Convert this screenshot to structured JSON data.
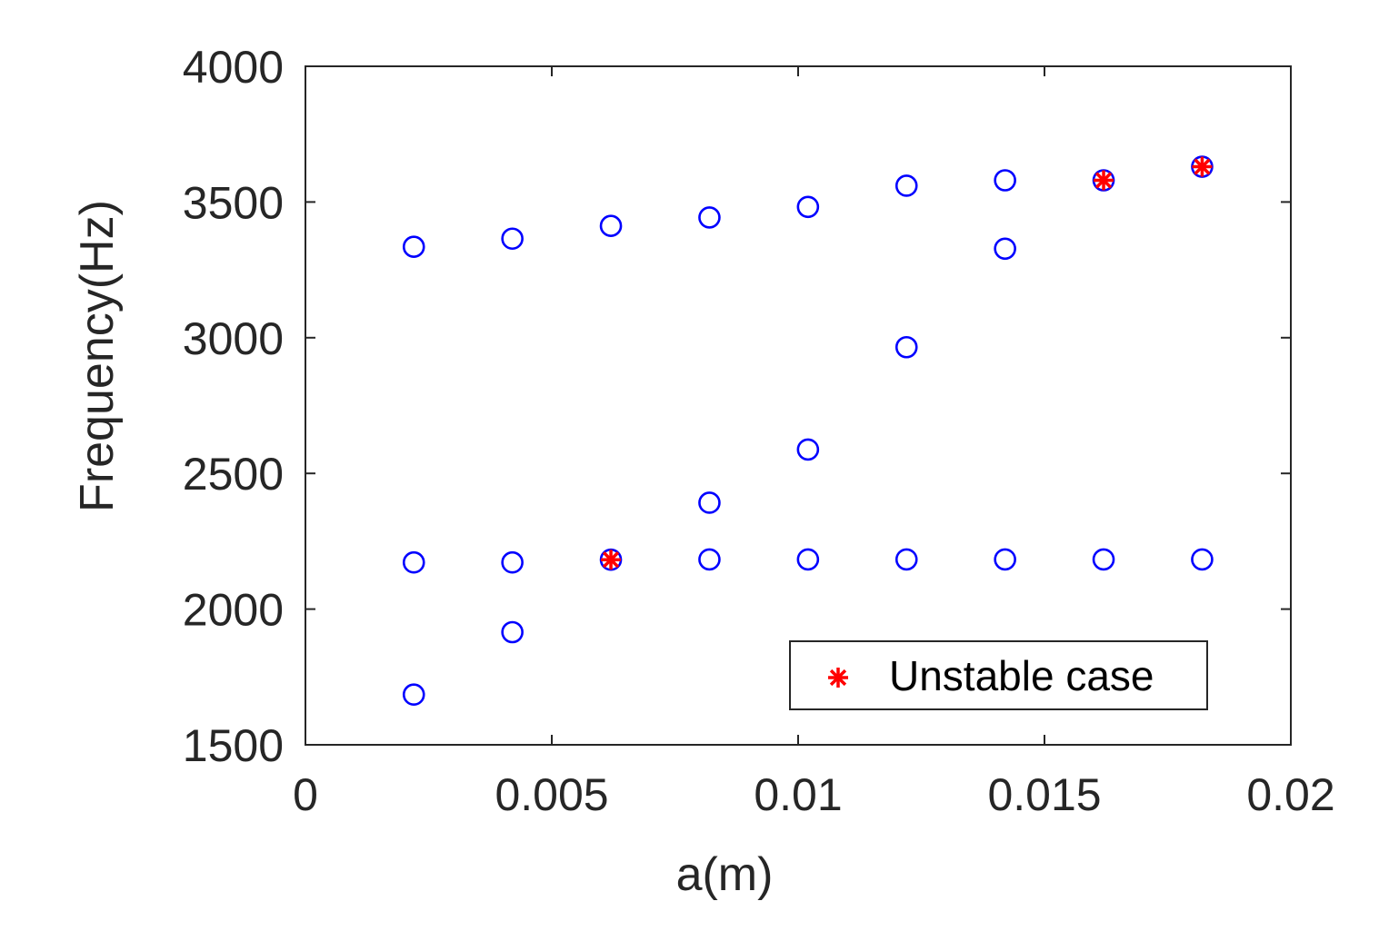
{
  "chart_data": {
    "type": "scatter",
    "title": "",
    "xlabel": "a(m)",
    "ylabel": "Frequency(Hz)",
    "xlim": [
      0,
      0.02
    ],
    "ylim": [
      1500,
      4000
    ],
    "xticks": [
      0,
      0.005,
      0.01,
      0.015,
      0.02
    ],
    "xtick_labels": [
      "0",
      "0.005",
      "0.01",
      "0.015",
      "0.02"
    ],
    "yticks": [
      1500,
      2000,
      2500,
      3000,
      3500,
      4000
    ],
    "ytick_labels": [
      "1500",
      "2000",
      "2500",
      "3000",
      "3500",
      "4000"
    ],
    "grid": false,
    "legend": {
      "position": "bottom-right",
      "entries": [
        "Unstable case"
      ]
    },
    "series": [
      {
        "marker": "circle",
        "color": "#0000ff",
        "points": [
          [
            0.0022,
            1685
          ],
          [
            0.0022,
            2172
          ],
          [
            0.0022,
            3335
          ],
          [
            0.0042,
            1915
          ],
          [
            0.0042,
            2172
          ],
          [
            0.0042,
            3365
          ],
          [
            0.0062,
            2182
          ],
          [
            0.0062,
            3412
          ],
          [
            0.0082,
            2183
          ],
          [
            0.0082,
            2392
          ],
          [
            0.0082,
            3443
          ],
          [
            0.0102,
            2183
          ],
          [
            0.0102,
            2588
          ],
          [
            0.0102,
            3482
          ],
          [
            0.0122,
            2183
          ],
          [
            0.0122,
            2965
          ],
          [
            0.0122,
            3560
          ],
          [
            0.0142,
            2183
          ],
          [
            0.0142,
            3328
          ],
          [
            0.0142,
            3580
          ],
          [
            0.0162,
            2183
          ],
          [
            0.0162,
            3580
          ],
          [
            0.0182,
            2183
          ],
          [
            0.0182,
            3630
          ]
        ]
      },
      {
        "name": "Unstable case",
        "marker": "asterisk",
        "color": "#ff0000",
        "points": [
          [
            0.0062,
            2182
          ],
          [
            0.0162,
            3580
          ],
          [
            0.0182,
            3630
          ]
        ]
      }
    ]
  }
}
